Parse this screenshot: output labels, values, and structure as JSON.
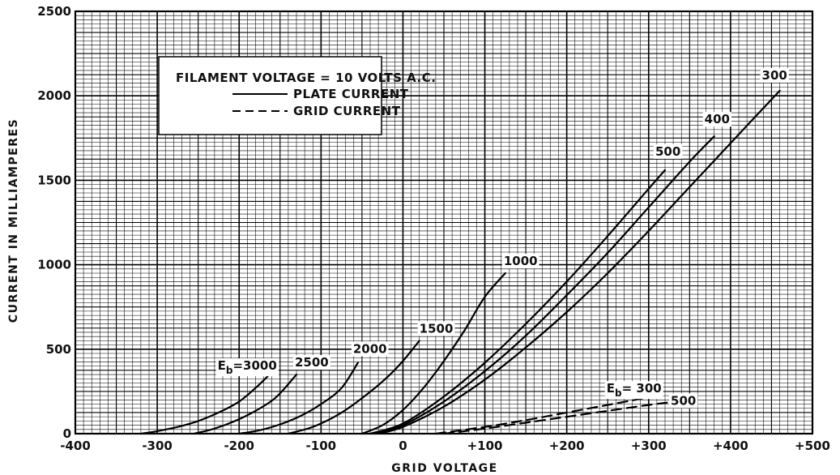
{
  "chart_data": {
    "type": "line",
    "title": "",
    "xlabel": "GRID VOLTAGE",
    "ylabel": "CURRENT IN MILLIAMPERES",
    "xlim": [
      -400,
      500
    ],
    "ylim": [
      0,
      2500
    ],
    "x_ticks": [
      "-400",
      "-300",
      "-200",
      "-100",
      "0",
      "+100",
      "+200",
      "+300",
      "+400",
      "+500"
    ],
    "x_tick_values": [
      -400,
      -300,
      -200,
      -100,
      0,
      100,
      200,
      300,
      400,
      500
    ],
    "y_ticks": [
      "0",
      "500",
      "1000",
      "1500",
      "2000",
      "2500"
    ],
    "y_tick_values": [
      0,
      500,
      1000,
      1500,
      2000,
      2500
    ],
    "grid": true,
    "legend": {
      "placement": "top-left",
      "header": "FILAMENT VOLTAGE = 10 VOLTS A.C.",
      "entries": [
        {
          "label": "PLATE CURRENT",
          "style": "solid"
        },
        {
          "label": "GRID CURRENT",
          "style": "dashed"
        }
      ]
    },
    "series": [
      {
        "name": "3000",
        "label_text": "E",
        "label_sub": "b",
        "label_suffix": "=3000",
        "kind": "plate",
        "style": "solid",
        "x": [
          -320,
          -300,
          -275,
          -250,
          -225,
          -200,
          -180,
          -165
        ],
        "y": [
          0,
          15,
          40,
          75,
          125,
          190,
          270,
          340
        ]
      },
      {
        "name": "2500",
        "label_text": "2500",
        "kind": "plate",
        "style": "solid",
        "x": [
          -255,
          -230,
          -205,
          -180,
          -155,
          -130
        ],
        "y": [
          0,
          30,
          75,
          135,
          215,
          350
        ]
      },
      {
        "name": "2000",
        "label_text": "2000",
        "kind": "plate",
        "style": "solid",
        "x": [
          -200,
          -175,
          -150,
          -125,
          -100,
          -75,
          -55
        ],
        "y": [
          0,
          20,
          55,
          105,
          175,
          270,
          420
        ]
      },
      {
        "name": "1500",
        "label_text": "1500",
        "kind": "plate",
        "style": "solid",
        "x": [
          -140,
          -110,
          -80,
          -50,
          -20,
          0,
          20
        ],
        "y": [
          0,
          40,
          110,
          210,
          330,
          430,
          550
        ]
      },
      {
        "name": "1000",
        "label_text": "1000",
        "kind": "plate",
        "style": "solid",
        "x": [
          -50,
          -25,
          0,
          25,
          50,
          75,
          100,
          125
        ],
        "y": [
          0,
          50,
          140,
          270,
          430,
          610,
          810,
          950
        ]
      },
      {
        "name": "500",
        "label_text": "500",
        "kind": "plate",
        "style": "solid",
        "x": [
          -40,
          0,
          50,
          100,
          150,
          200,
          250,
          300,
          320
        ],
        "y": [
          0,
          60,
          220,
          420,
          650,
          900,
          1170,
          1450,
          1560
        ]
      },
      {
        "name": "400",
        "label_text": "400",
        "kind": "plate",
        "style": "solid",
        "x": [
          -35,
          0,
          50,
          100,
          150,
          200,
          250,
          300,
          350,
          380
        ],
        "y": [
          0,
          50,
          190,
          370,
          580,
          820,
          1070,
          1340,
          1610,
          1760
        ]
      },
      {
        "name": "300",
        "label_text": "300",
        "kind": "plate",
        "style": "solid",
        "x": [
          -30,
          0,
          50,
          100,
          150,
          200,
          250,
          300,
          350,
          400,
          460
        ],
        "y": [
          0,
          40,
          160,
          320,
          510,
          720,
          950,
          1200,
          1460,
          1720,
          2030
        ]
      },
      {
        "name": "300",
        "label_text": "E",
        "label_sub": "b",
        "label_suffix": "= 300",
        "kind": "grid",
        "style": "dashed",
        "x": [
          40,
          100,
          150,
          200,
          250,
          300
        ],
        "y": [
          0,
          40,
          80,
          125,
          170,
          215
        ]
      },
      {
        "name": "500",
        "label_text": "500",
        "kind": "grid",
        "style": "dashed",
        "x": [
          50,
          100,
          150,
          200,
          250,
          300,
          325
        ],
        "y": [
          0,
          30,
          65,
          100,
          135,
          170,
          185
        ]
      }
    ]
  }
}
